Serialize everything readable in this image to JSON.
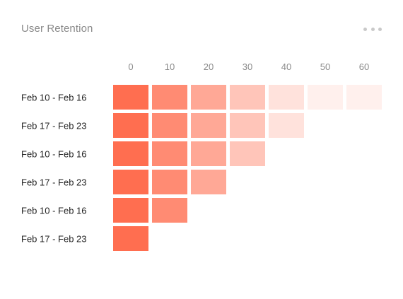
{
  "card": {
    "title": "User Retention",
    "menu_icon": "more-horizontal-icon"
  },
  "chart_data": {
    "type": "heatmap",
    "title": "User Retention",
    "columns": [
      "0",
      "10",
      "20",
      "30",
      "40",
      "50",
      "60"
    ],
    "rows": [
      "Feb 10 - Feb 16",
      "Feb 17 - Feb 23",
      "Feb 10 - Feb 16",
      "Feb 17 - Feb 23",
      "Feb 10 - Feb 16",
      "Feb 17 - Feb 23"
    ],
    "values": [
      [
        1.0,
        0.8,
        0.6,
        0.4,
        0.2,
        0.1,
        0.1
      ],
      [
        1.0,
        0.8,
        0.6,
        0.4,
        0.2
      ],
      [
        1.0,
        0.8,
        0.6,
        0.4
      ],
      [
        1.0,
        0.8,
        0.6
      ],
      [
        1.0,
        0.8
      ],
      [
        1.0
      ]
    ],
    "color": "#ff6e50",
    "legend": "none",
    "grid": false
  }
}
